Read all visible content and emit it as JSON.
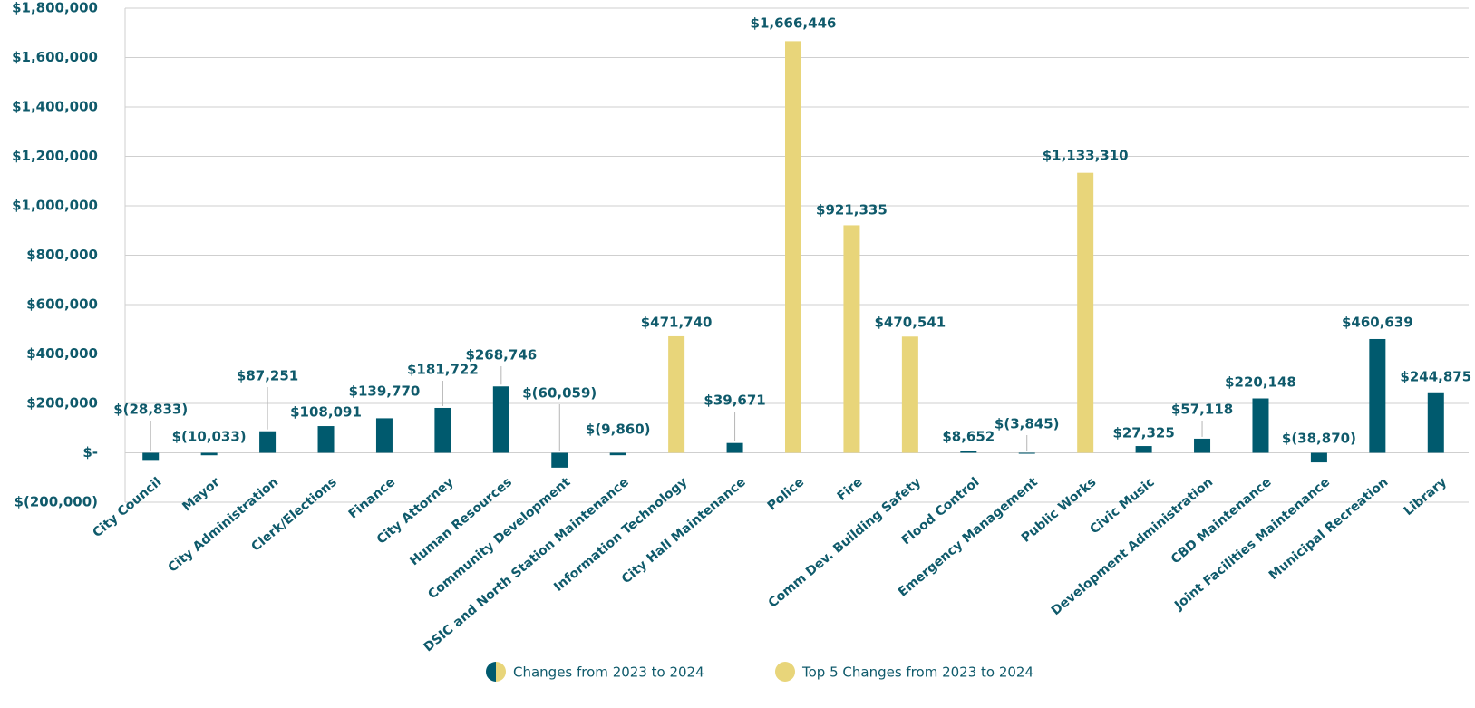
{
  "chart_data": {
    "type": "bar",
    "categories": [
      "City Council",
      "Mayor",
      "City Administration",
      "Clerk/Elections",
      "Finance",
      "City Attorney",
      "Human Resources",
      "Community Development",
      "DSIC and North Station Maintenance",
      "Information Technology",
      "City Hall Maintenance",
      "Police",
      "Fire",
      "Comm Dev. Building Safety",
      "Flood Control",
      "Emergency Management",
      "Public Works",
      "Civic Music",
      "Development Administration",
      "CBD Maintenance",
      "Joint Facilities Maintenance",
      "Municipal Recreation",
      "Library"
    ],
    "series": [
      {
        "name": "Changes from 2023 to 2024",
        "color": "#005a6e",
        "values": [
          -28833,
          -10033,
          87251,
          108091,
          139770,
          181722,
          268746,
          -60059,
          -9860,
          null,
          39671,
          null,
          null,
          null,
          8652,
          -3845,
          null,
          27325,
          57118,
          220148,
          -38870,
          460639,
          244875
        ],
        "value_labels": [
          "$(28,833)",
          "$(10,033)",
          "$87,251",
          "$108,091",
          "$139,770",
          "$181,722",
          "$268,746",
          "$(60,059)",
          "$(9,860)",
          null,
          "$39,671",
          null,
          null,
          null,
          "$8,652",
          "$(3,845)",
          null,
          "$27,325",
          "$57,118",
          "$220,148",
          "$(38,870)",
          "$460,639",
          "$244,875"
        ]
      },
      {
        "name": "Top 5 Changes from 2023 to 2024",
        "color": "#e8d57a",
        "values": [
          null,
          null,
          null,
          null,
          null,
          null,
          null,
          null,
          null,
          471740,
          null,
          1666446,
          921335,
          470541,
          null,
          null,
          1133310,
          null,
          null,
          null,
          null,
          null,
          null
        ],
        "value_labels": [
          null,
          null,
          null,
          null,
          null,
          null,
          null,
          null,
          null,
          "$471,740",
          null,
          "$1,666,446",
          "$921,335",
          "$470,541",
          null,
          null,
          "$1,133,310",
          null,
          null,
          null,
          null,
          null,
          null
        ]
      }
    ],
    "ylim": [
      -200000,
      1800000
    ],
    "yticks": [
      {
        "value": -200000,
        "label": "$(200,000)"
      },
      {
        "value": 0,
        "label": "$-"
      },
      {
        "value": 200000,
        "label": "$200,000"
      },
      {
        "value": 400000,
        "label": "$400,000"
      },
      {
        "value": 600000,
        "label": "$600,000"
      },
      {
        "value": 800000,
        "label": "$800,000"
      },
      {
        "value": 1000000,
        "label": "$1,000,000"
      },
      {
        "value": 1200000,
        "label": "$1,200,000"
      },
      {
        "value": 1400000,
        "label": "$1,400,000"
      },
      {
        "value": 1600000,
        "label": "$1,600,000"
      },
      {
        "value": 1800000,
        "label": "$1,800,000"
      }
    ],
    "grid": true
  }
}
